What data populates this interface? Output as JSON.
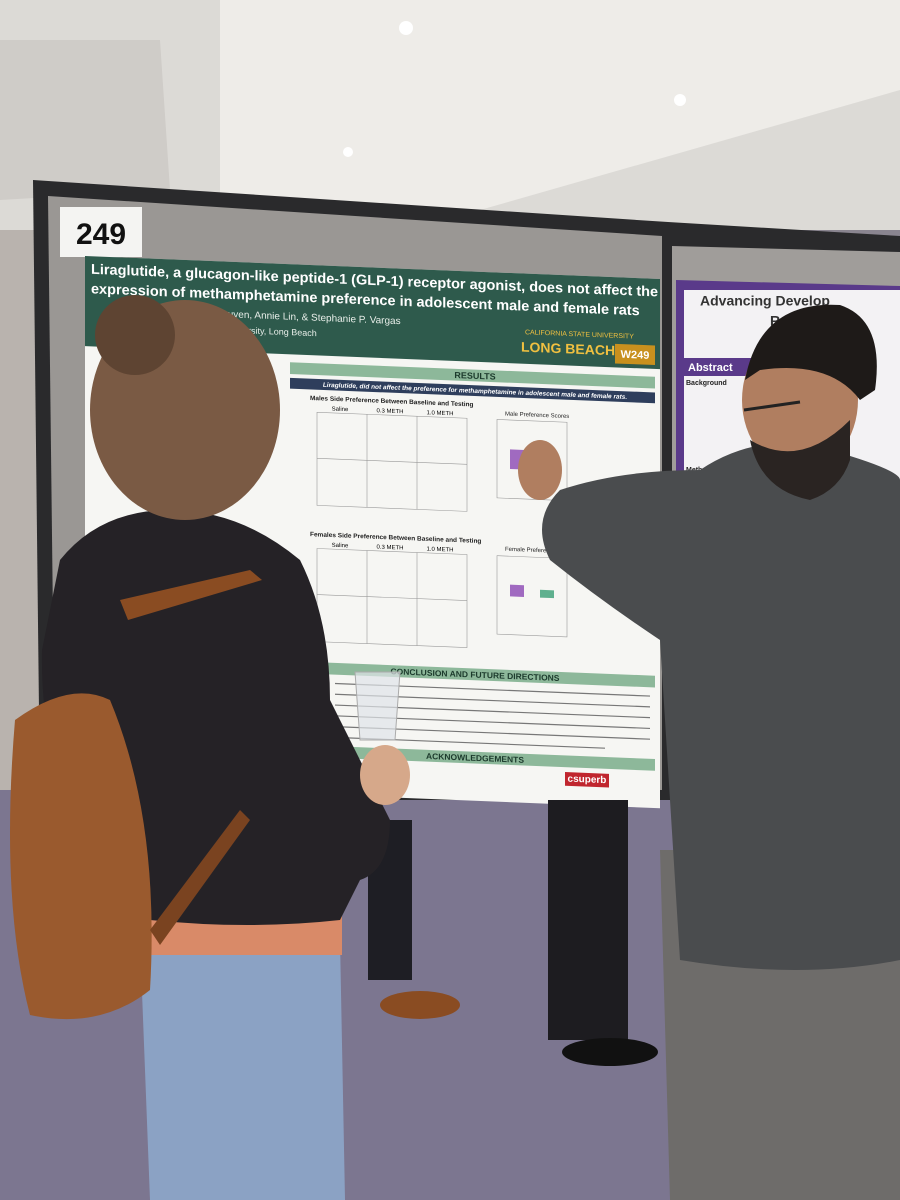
{
  "poster_number": "249",
  "poster": {
    "title_lines": [
      "Liraglutide, a glucagon-like peptide-1 (GLP-1) receptor agonist, does not affect the",
      "expression of methamphetamine preference in adolescent male and female rats"
    ],
    "authors": "Nguyen, Annie Lin, & Stephanie P. Vargas",
    "affiliation": "University, Long Beach",
    "university": "CALIFORNIA STATE UNIVERSITY",
    "campus": "LONG BEACH",
    "code": "W249",
    "results": "RESULTS",
    "results_summary": "Liraglutide, did not affect the preference for methamphetamine in adolescent male and female rats.",
    "male_panel": "Males Side Preference Between Baseline and Testing",
    "male_scores": "Male Preference Scores",
    "female_panel": "Females Side Preference Between Baseline and Testing",
    "female_scores": "Female Preference",
    "groups": [
      "Saline",
      "0.3 METH",
      "1.0 METH"
    ],
    "conclusion": "CONCLUSION AND FUTURE DIRECTIONS",
    "acknowledgements": "ACKNOWLEDGEMENTS",
    "sponsor": "csuperb"
  },
  "neighbor_poster": {
    "title_lines": [
      "Advancing Develop",
      "Revers"
    ],
    "abstract": "Abstract",
    "background": "Background",
    "methods": "Methods"
  }
}
